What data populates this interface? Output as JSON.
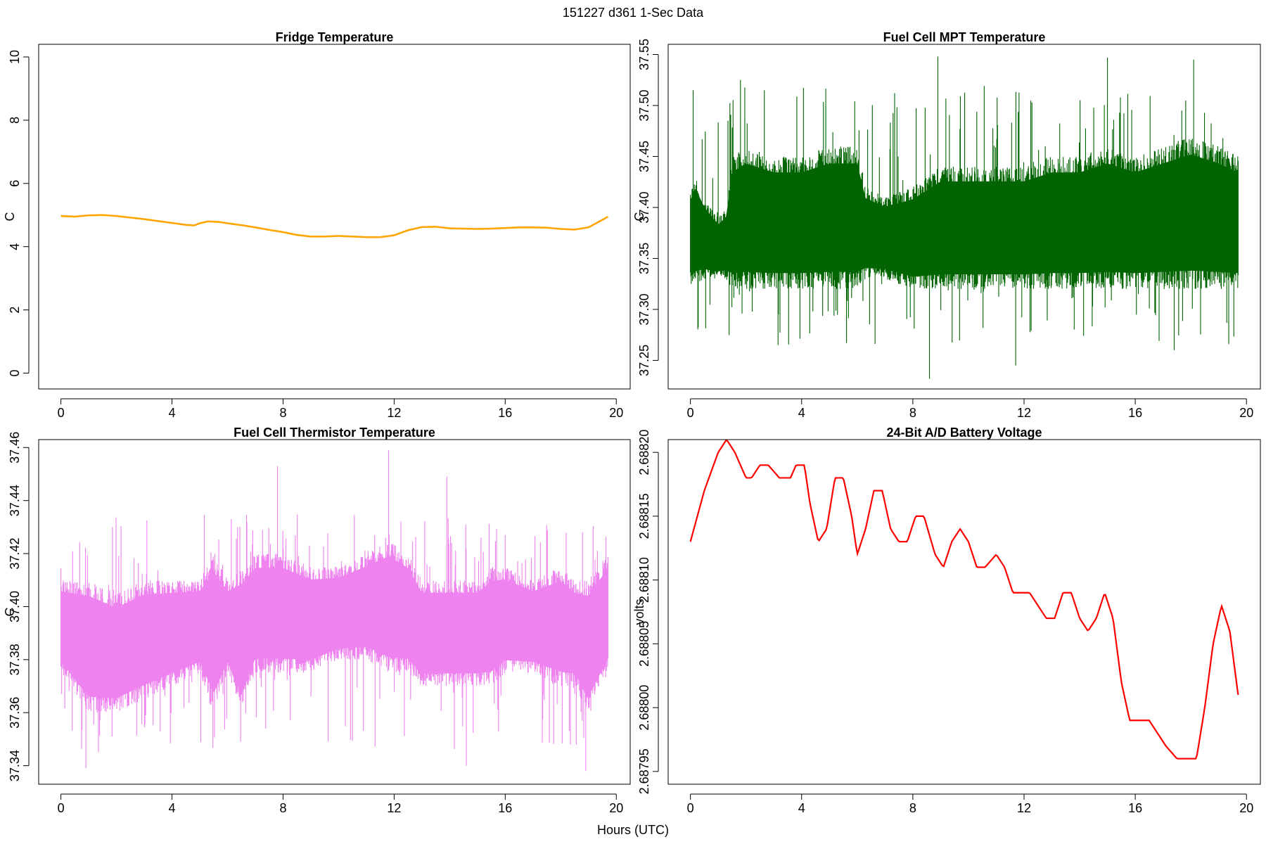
{
  "figure": {
    "title": "151227   d361   1-Sec Data",
    "xlabel": "Hours (UTC)"
  },
  "chart_data": [
    {
      "id": "fridge",
      "type": "line",
      "title": "Fridge Temperature",
      "xlabel": "",
      "ylabel": "C",
      "xlim": [
        -0.8,
        20.5
      ],
      "ylim": [
        -0.5,
        10.4
      ],
      "xticks": [
        0,
        4,
        8,
        12,
        16,
        20
      ],
      "yticks": [
        0,
        2,
        4,
        6,
        8,
        10
      ],
      "ytick_decimals": 0,
      "color": "#ffa500",
      "style": "smooth",
      "grid": false,
      "x": [
        0,
        0.5,
        1,
        1.5,
        2,
        2.5,
        3,
        3.5,
        4,
        4.5,
        4.8,
        5,
        5.3,
        5.7,
        6,
        6.5,
        7,
        7.5,
        8,
        8.5,
        9,
        9.5,
        10,
        10.5,
        11,
        11.5,
        12,
        12.5,
        13,
        13.5,
        14,
        14.5,
        15,
        15.5,
        16,
        16.5,
        17,
        17.5,
        18,
        18.5,
        19,
        19.5,
        19.7
      ],
      "y": [
        4.97,
        4.95,
        4.99,
        5.0,
        4.97,
        4.92,
        4.87,
        4.81,
        4.75,
        4.69,
        4.67,
        4.74,
        4.8,
        4.78,
        4.74,
        4.68,
        4.61,
        4.53,
        4.46,
        4.37,
        4.32,
        4.32,
        4.34,
        4.32,
        4.3,
        4.3,
        4.36,
        4.52,
        4.62,
        4.63,
        4.58,
        4.57,
        4.56,
        4.57,
        4.59,
        4.61,
        4.61,
        4.6,
        4.56,
        4.54,
        4.61,
        4.85,
        4.95
      ]
    },
    {
      "id": "mpt",
      "type": "line",
      "title": "Fuel Cell MPT Temperature",
      "xlabel": "",
      "ylabel": "C",
      "xlim": [
        -0.8,
        20.5
      ],
      "ylim": [
        37.222,
        37.56
      ],
      "xticks": [
        0,
        4,
        8,
        12,
        16,
        20
      ],
      "yticks": [
        37.25,
        37.3,
        37.35,
        37.4,
        37.45,
        37.5,
        37.55
      ],
      "ytick_decimals": 2,
      "color": "#006400",
      "style": "noise",
      "grid": false,
      "band": {
        "x": [
          0,
          0.2,
          0.5,
          1,
          1.3,
          1.5,
          2,
          3,
          4,
          5,
          6,
          6.3,
          7,
          8,
          9,
          10,
          11,
          12,
          13,
          14,
          15,
          16,
          17,
          18,
          19,
          19.7
        ],
        "low": [
          37.32,
          37.325,
          37.33,
          37.33,
          37.33,
          37.32,
          37.32,
          37.32,
          37.32,
          37.32,
          37.32,
          37.33,
          37.33,
          37.32,
          37.32,
          37.32,
          37.32,
          37.32,
          37.32,
          37.32,
          37.32,
          37.32,
          37.32,
          37.32,
          37.32,
          37.32
        ],
        "high": [
          37.42,
          37.43,
          37.41,
          37.39,
          37.4,
          37.45,
          37.46,
          37.45,
          37.45,
          37.46,
          37.46,
          37.42,
          37.41,
          37.42,
          37.44,
          37.44,
          37.44,
          37.44,
          37.45,
          37.45,
          37.46,
          37.45,
          37.46,
          37.47,
          37.46,
          37.45
        ],
        "spike_low": 37.265,
        "spike_high": 37.52
      },
      "extremes": [
        [
          0.1,
          37.515
        ],
        [
          1.8,
          37.525
        ],
        [
          8.9,
          37.548
        ],
        [
          8.6,
          37.232
        ],
        [
          11.7,
          37.245
        ],
        [
          15.0,
          37.547
        ],
        [
          18.1,
          37.545
        ],
        [
          17.4,
          37.26
        ]
      ]
    },
    {
      "id": "thermistor",
      "type": "line",
      "title": "Fuel Cell Thermistor Temperature",
      "xlabel": "",
      "ylabel": "C",
      "xlim": [
        -0.8,
        20.5
      ],
      "ylim": [
        37.333,
        37.463
      ],
      "xticks": [
        0,
        4,
        8,
        12,
        16,
        20
      ],
      "yticks": [
        37.34,
        37.36,
        37.38,
        37.4,
        37.42,
        37.44,
        37.46
      ],
      "ytick_decimals": 2,
      "color": "#ee82ee",
      "style": "noise",
      "grid": false,
      "band": {
        "x": [
          0,
          1,
          2,
          3,
          4,
          5,
          5.5,
          6,
          6.5,
          7,
          8,
          9,
          10,
          11,
          11.8,
          12.5,
          13,
          14,
          15,
          15.5,
          16,
          17,
          18,
          18.5,
          19,
          19.7
        ],
        "low": [
          37.375,
          37.36,
          37.36,
          37.365,
          37.37,
          37.375,
          37.36,
          37.375,
          37.36,
          37.375,
          37.375,
          37.375,
          37.38,
          37.38,
          37.375,
          37.375,
          37.37,
          37.37,
          37.37,
          37.37,
          37.375,
          37.375,
          37.37,
          37.37,
          37.36,
          37.375
        ],
        "high": [
          37.41,
          37.41,
          37.405,
          37.41,
          37.41,
          37.41,
          37.42,
          37.41,
          37.415,
          37.42,
          37.42,
          37.415,
          37.415,
          37.42,
          37.425,
          37.42,
          37.41,
          37.41,
          37.41,
          37.415,
          37.415,
          37.41,
          37.415,
          37.41,
          37.41,
          37.42
        ],
        "spike_low": 37.345,
        "spike_high": 37.435
      },
      "extremes": [
        [
          7.8,
          37.453
        ],
        [
          11.8,
          37.459
        ],
        [
          13.9,
          37.449
        ],
        [
          18.9,
          37.338
        ],
        [
          0.9,
          37.339
        ],
        [
          14.6,
          37.34
        ]
      ]
    },
    {
      "id": "battery",
      "type": "line",
      "title": "24-Bit A/D Battery Voltage",
      "xlabel": "",
      "ylabel": "volts",
      "xlim": [
        -0.8,
        20.5
      ],
      "ylim": [
        2.68794,
        2.68821
      ],
      "xticks": [
        0,
        4,
        8,
        12,
        16,
        20
      ],
      "yticks": [
        2.68795,
        2.688,
        2.68805,
        2.6881,
        2.68815,
        2.6882
      ],
      "ytick_decimals": 5,
      "color": "#ff0000",
      "style": "smooth",
      "grid": false,
      "x": [
        0,
        0.5,
        1,
        1.3,
        1.6,
        2,
        2.2,
        2.5,
        2.8,
        3.2,
        3.6,
        3.8,
        4.1,
        4.3,
        4.6,
        4.9,
        5.2,
        5.5,
        5.8,
        6.0,
        6.3,
        6.6,
        6.9,
        7.2,
        7.5,
        7.8,
        8.1,
        8.4,
        8.8,
        9.1,
        9.4,
        9.7,
        10.0,
        10.3,
        10.6,
        11.0,
        11.3,
        11.6,
        11.9,
        12.2,
        12.5,
        12.8,
        13.1,
        13.4,
        13.7,
        14.0,
        14.3,
        14.6,
        14.9,
        15.2,
        15.5,
        15.8,
        16.1,
        16.5,
        16.8,
        17.1,
        17.5,
        17.8,
        18.2,
        18.5,
        18.8,
        19.1,
        19.4,
        19.7
      ],
      "y": [
        2.68813,
        2.68817,
        2.6882,
        2.68821,
        2.6882,
        2.68818,
        2.68818,
        2.68819,
        2.68819,
        2.68818,
        2.68818,
        2.68819,
        2.68819,
        2.68816,
        2.68813,
        2.68814,
        2.68818,
        2.68818,
        2.68815,
        2.68812,
        2.68814,
        2.68817,
        2.68817,
        2.68814,
        2.68813,
        2.68813,
        2.68815,
        2.68815,
        2.68812,
        2.68811,
        2.68813,
        2.68814,
        2.68813,
        2.68811,
        2.68811,
        2.68812,
        2.68811,
        2.68809,
        2.68809,
        2.68809,
        2.68808,
        2.68807,
        2.68807,
        2.68809,
        2.68809,
        2.68807,
        2.68806,
        2.68807,
        2.68809,
        2.68807,
        2.68802,
        2.68799,
        2.68799,
        2.68799,
        2.68798,
        2.68797,
        2.68796,
        2.68796,
        2.68796,
        2.688,
        2.68805,
        2.68808,
        2.68806,
        2.68801
      ]
    }
  ]
}
